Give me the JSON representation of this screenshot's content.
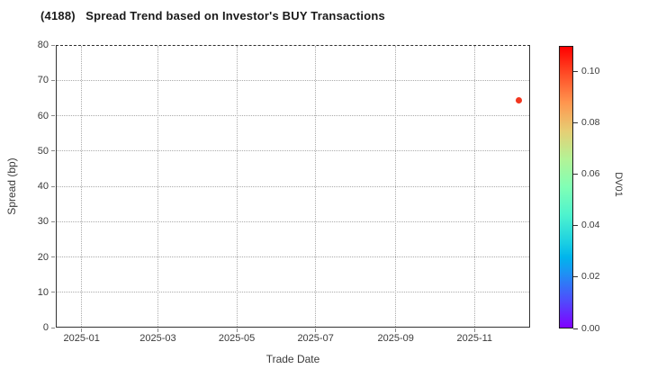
{
  "chart_data": {
    "type": "scatter",
    "title": "(4188)   Spread Trend based on Investor's BUY Transactions",
    "xlabel": "Trade Date",
    "ylabel": "Spread (bp)",
    "x_domain": [
      "2024-12-12",
      "2025-12-14"
    ],
    "x_ticks": [
      {
        "label": "2025-01",
        "date": "2025-01-01"
      },
      {
        "label": "2025-03",
        "date": "2025-03-01"
      },
      {
        "label": "2025-05",
        "date": "2025-05-01"
      },
      {
        "label": "2025-07",
        "date": "2025-07-01"
      },
      {
        "label": "2025-09",
        "date": "2025-09-01"
      },
      {
        "label": "2025-11",
        "date": "2025-11-01"
      }
    ],
    "ylim": [
      0,
      80
    ],
    "y_ticks": [
      0,
      10,
      20,
      30,
      40,
      50,
      60,
      70,
      80
    ],
    "grid": true,
    "grid_style": "dotted",
    "legend": "none",
    "points": [
      {
        "date": "2025-12-05",
        "spread_bp": 64.3,
        "dv01": 0.105,
        "color": "#f2361f"
      }
    ],
    "colorbar": {
      "label": "DV01",
      "range": [
        0,
        0.11
      ],
      "colormap": "rainbow",
      "position": "right",
      "ticks": [
        {
          "label": "0.00",
          "value": 0.0
        },
        {
          "label": "0.02",
          "value": 0.02
        },
        {
          "label": "0.04",
          "value": 0.04
        },
        {
          "label": "0.06",
          "value": 0.06
        },
        {
          "label": "0.08",
          "value": 0.08
        },
        {
          "label": "0.10",
          "value": 0.1
        }
      ],
      "gradient": [
        {
          "t": 0.0,
          "color": "#8000ff"
        },
        {
          "t": 0.1,
          "color": "#4d4ffc"
        },
        {
          "t": 0.2,
          "color": "#1a96f3"
        },
        {
          "t": 0.25,
          "color": "#00b4ec"
        },
        {
          "t": 0.3,
          "color": "#1acee3"
        },
        {
          "t": 0.4,
          "color": "#4df3ce"
        },
        {
          "t": 0.5,
          "color": "#80ffb5"
        },
        {
          "t": 0.6,
          "color": "#b3f396"
        },
        {
          "t": 0.7,
          "color": "#e6ce74"
        },
        {
          "t": 0.8,
          "color": "#ff964f"
        },
        {
          "t": 0.9,
          "color": "#ff4f28"
        },
        {
          "t": 1.0,
          "color": "#ff0000"
        }
      ]
    },
    "colors": {
      "marker": "#f2361f",
      "grid": "#ababab",
      "spine": "#333333",
      "text": "#3a3a3a",
      "title": "#1a1a1a",
      "background": "#ffffff"
    }
  }
}
